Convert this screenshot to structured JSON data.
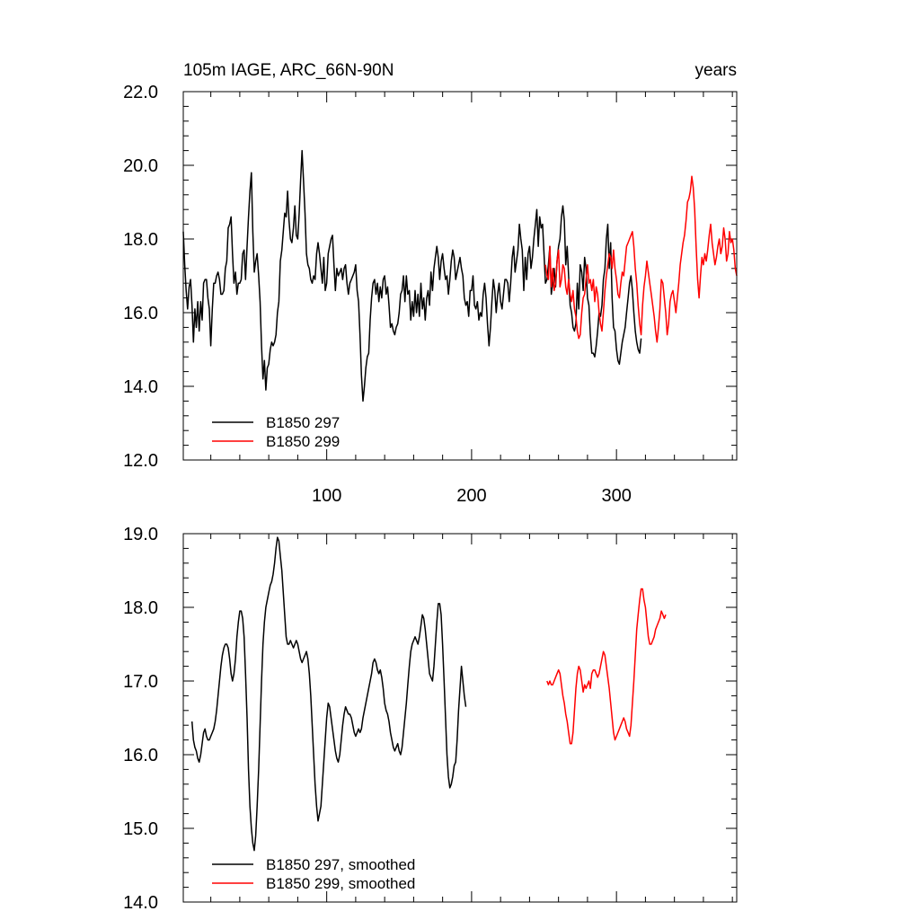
{
  "chart_data": [
    {
      "type": "line",
      "title_left": "105m IAGE, ARC_66N-90N",
      "title_right": "years",
      "xlim": [
        1,
        383
      ],
      "ylim": [
        12.0,
        22.0
      ],
      "yticks": [
        "12.0",
        "14.0",
        "16.0",
        "18.0",
        "20.0",
        "22.0"
      ],
      "xticks": [
        "100",
        "200",
        "300"
      ],
      "grid": false,
      "legend_position": "bottom-left",
      "series": [
        {
          "name": "B1850 297",
          "color": "#000000",
          "x_start": 1,
          "values": [
            18.2,
            17.3,
            16.6,
            16.1,
            16.7,
            16.9,
            16.2,
            15.2,
            16.1,
            15.6,
            16.3,
            15.5,
            16.3,
            15.8,
            16.8,
            16.9,
            16.9,
            16.4,
            16.1,
            15.1,
            16.1,
            16.8,
            16.8,
            17.0,
            17.1,
            16.9,
            16.5,
            16.5,
            16.6,
            17.2,
            17.4,
            18.3,
            18.4,
            18.6,
            17.6,
            16.8,
            17.1,
            16.5,
            16.8,
            16.8,
            16.9,
            17.6,
            17.7,
            16.9,
            17.8,
            18.6,
            19.3,
            19.8,
            18.2,
            17.1,
            17.4,
            17.6,
            17.0,
            16.3,
            15.1,
            14.2,
            14.7,
            13.9,
            14.5,
            14.6,
            15.0,
            15.2,
            15.1,
            15.2,
            15.4,
            16.0,
            16.3,
            17.4,
            17.7,
            18.2,
            18.7,
            18.6,
            19.3,
            18.5,
            18.0,
            17.9,
            18.3,
            18.9,
            18.1,
            18.0,
            18.7,
            19.6,
            20.4,
            19.6,
            18.7,
            17.6,
            17.3,
            17.2,
            16.9,
            16.8,
            17.0,
            16.9,
            17.6,
            17.9,
            17.6,
            17.2,
            16.8,
            17.5,
            16.6,
            16.8,
            17.6,
            17.8,
            18.0,
            18.1,
            17.3,
            16.6,
            17.2,
            17.0,
            17.1,
            17.2,
            16.9,
            17.2,
            17.3,
            16.8,
            16.5,
            16.8,
            16.9,
            17.0,
            17.1,
            17.3,
            16.6,
            16.3,
            15.4,
            14.3,
            13.6,
            14.0,
            14.5,
            14.8,
            14.9,
            15.8,
            16.4,
            16.8,
            16.9,
            16.5,
            16.8,
            16.3,
            16.7,
            16.4,
            16.9,
            17.0,
            16.5,
            16.7,
            16.2,
            15.6,
            15.7,
            15.5,
            15.4,
            15.6,
            15.7,
            16.0,
            16.5,
            16.6,
            17.0,
            16.3,
            17.0,
            16.5,
            16.6,
            15.8,
            16.3,
            15.9,
            16.6,
            16.0,
            16.5,
            15.9,
            16.8,
            16.1,
            16.4,
            15.8,
            16.4,
            16.6,
            16.2,
            17.1,
            16.6,
            17.2,
            17.5,
            17.8,
            17.5,
            16.9,
            17.4,
            17.6,
            17.2,
            16.9,
            17.0,
            16.5,
            16.9,
            17.4,
            17.7,
            17.5,
            16.9,
            17.1,
            17.3,
            17.5,
            17.2,
            17.0,
            16.4,
            16.2,
            16.3,
            15.9,
            16.6,
            16.6,
            17.0,
            16.2,
            16.1,
            16.3,
            15.8,
            16.0,
            15.9,
            16.5,
            16.8,
            16.4,
            15.7,
            15.1,
            15.6,
            16.3,
            16.9,
            16.6,
            16.0,
            16.5,
            16.8,
            16.3,
            16.1,
            16.5,
            16.9,
            16.9,
            16.8,
            16.3,
            16.8,
            17.5,
            17.8,
            17.1,
            17.4,
            17.7,
            18.4,
            18.0,
            17.7,
            16.6,
            17.5,
            16.9,
            17.6,
            17.8,
            17.2,
            17.5,
            18.0,
            18.4,
            18.8,
            17.8,
            18.6,
            18.3,
            18.4,
            17.6,
            16.8,
            16.9,
            17.3,
            17.8,
            16.5,
            16.8,
            17.2,
            16.7,
            17.4,
            17.8,
            18.0,
            18.6,
            18.9,
            18.5,
            17.3,
            17.8,
            17.0,
            16.2,
            16.0,
            15.6,
            15.5,
            15.7,
            16.8,
            16.1,
            17.3,
            17.1,
            16.6,
            17.5,
            17.2,
            16.4,
            16.2,
            15.4,
            14.9,
            14.9,
            14.8,
            15.1,
            15.5,
            16.0,
            15.9,
            16.2,
            16.9,
            17.2,
            18.0,
            18.4,
            17.2,
            17.9,
            16.4,
            15.6,
            15.5,
            15.0,
            14.7,
            14.6,
            14.9,
            15.2,
            15.4,
            15.6,
            16.0,
            16.4,
            16.8,
            17.0,
            16.6,
            16.0,
            15.5,
            15.2,
            15.0,
            14.9,
            15.3
          ]
        },
        {
          "name": "B1850 299",
          "color": "#ff0000",
          "x_start": 251,
          "values": [
            17.3,
            17.0,
            16.9,
            17.8,
            16.7,
            17.2,
            16.6,
            16.8,
            17.4,
            17.7,
            16.7,
            16.9,
            17.3,
            17.2,
            16.7,
            16.5,
            16.9,
            16.5,
            16.3,
            16.6,
            16.1,
            15.9,
            15.5,
            15.3,
            15.4,
            16.0,
            16.4,
            16.5,
            16.9,
            17.3,
            16.8,
            16.9,
            16.6,
            16.9,
            16.3,
            16.7,
            16.5,
            16.0,
            15.7,
            15.5,
            16.0,
            16.6,
            17.0,
            17.3,
            17.6,
            17.5,
            17.2,
            17.7,
            17.2,
            16.9,
            16.5,
            16.4,
            16.8,
            17.1,
            17.0,
            17.4,
            17.8,
            17.9,
            18.0,
            18.1,
            18.2,
            17.8,
            17.2,
            16.8,
            16.2,
            15.7,
            15.4,
            16.2,
            16.7,
            17.0,
            17.4,
            17.1,
            16.8,
            16.5,
            16.2,
            15.9,
            15.5,
            15.2,
            15.6,
            16.1,
            16.9,
            16.8,
            16.4,
            16.0,
            15.4,
            15.7,
            16.3,
            16.5,
            16.6,
            16.3,
            16.0,
            16.4,
            16.8,
            17.3,
            17.6,
            17.9,
            18.1,
            18.5,
            19.0,
            19.1,
            19.3,
            19.7,
            19.4,
            18.8,
            17.8,
            16.9,
            16.4,
            17.0,
            17.5,
            17.3,
            17.6,
            17.4,
            17.7,
            18.1,
            18.4,
            17.9,
            17.6,
            17.3,
            17.5,
            17.8,
            18.0,
            17.6,
            17.8,
            18.3,
            18.0,
            17.4,
            17.6,
            18.2,
            17.9,
            18.0,
            17.7,
            17.2,
            17.0
          ]
        }
      ]
    },
    {
      "type": "line",
      "xlim": [
        1,
        383
      ],
      "ylim": [
        14.0,
        19.0
      ],
      "yticks": [
        "14.0",
        "15.0",
        "16.0",
        "17.0",
        "18.0",
        "19.0"
      ],
      "grid": false,
      "legend_position": "bottom-left",
      "series": [
        {
          "name": "B1850 297, smoothed",
          "color": "#000000",
          "x_start": 7,
          "values": [
            16.45,
            16.2,
            16.1,
            16.05,
            15.95,
            15.9,
            16.0,
            16.15,
            16.3,
            16.35,
            16.25,
            16.2,
            16.2,
            16.25,
            16.3,
            16.35,
            16.45,
            16.6,
            16.8,
            17.0,
            17.2,
            17.35,
            17.45,
            17.5,
            17.5,
            17.45,
            17.3,
            17.1,
            17.0,
            17.1,
            17.3,
            17.6,
            17.8,
            17.95,
            17.95,
            17.85,
            17.6,
            17.1,
            16.5,
            15.8,
            15.3,
            15.0,
            14.8,
            14.7,
            14.9,
            15.3,
            15.8,
            16.4,
            17.0,
            17.5,
            17.8,
            18.0,
            18.1,
            18.2,
            18.3,
            18.35,
            18.45,
            18.6,
            18.8,
            18.95,
            18.9,
            18.7,
            18.5,
            18.2,
            17.9,
            17.6,
            17.5,
            17.5,
            17.55,
            17.5,
            17.45,
            17.5,
            17.55,
            17.5,
            17.4,
            17.3,
            17.25,
            17.3,
            17.35,
            17.4,
            17.3,
            17.1,
            16.8,
            16.4,
            16.0,
            15.6,
            15.3,
            15.1,
            15.2,
            15.3,
            15.6,
            15.9,
            16.2,
            16.5,
            16.7,
            16.65,
            16.5,
            16.35,
            16.2,
            16.05,
            15.95,
            15.9,
            16.0,
            16.2,
            16.4,
            16.55,
            16.65,
            16.6,
            16.55,
            16.55,
            16.5,
            16.4,
            16.3,
            16.25,
            16.3,
            16.35,
            16.3,
            16.35,
            16.5,
            16.6,
            16.7,
            16.8,
            16.9,
            17.0,
            17.1,
            17.25,
            17.3,
            17.25,
            17.15,
            17.1,
            17.15,
            17.05,
            16.9,
            16.7,
            16.6,
            16.55,
            16.45,
            16.3,
            16.2,
            16.1,
            16.05,
            16.1,
            16.15,
            16.05,
            16.0,
            16.1,
            16.3,
            16.5,
            16.7,
            16.95,
            17.2,
            17.4,
            17.5,
            17.55,
            17.6,
            17.55,
            17.5,
            17.6,
            17.75,
            17.9,
            17.85,
            17.7,
            17.5,
            17.3,
            17.1,
            17.05,
            17.0,
            17.2,
            17.5,
            17.8,
            18.05,
            18.05,
            17.9,
            17.5,
            17.0,
            16.5,
            16.0,
            15.7,
            15.55,
            15.6,
            15.7,
            15.85,
            15.9,
            16.2,
            16.6,
            16.9,
            17.2,
            17.0,
            16.8,
            16.65
          ]
        },
        {
          "name": "B1850 299, smoothed",
          "color": "#ff0000",
          "x_start": 252,
          "values": [
            17.0,
            16.95,
            17.0,
            16.95,
            16.95,
            17.0,
            17.05,
            17.1,
            17.15,
            17.1,
            16.95,
            16.8,
            16.7,
            16.55,
            16.45,
            16.3,
            16.15,
            16.15,
            16.3,
            16.6,
            16.9,
            17.1,
            17.2,
            17.15,
            17.0,
            16.85,
            16.95,
            16.9,
            16.95,
            17.0,
            16.9,
            17.1,
            17.15,
            17.15,
            17.1,
            17.05,
            17.1,
            17.2,
            17.3,
            17.4,
            17.35,
            17.2,
            17.05,
            16.9,
            16.7,
            16.5,
            16.3,
            16.2,
            16.25,
            16.3,
            16.35,
            16.4,
            16.45,
            16.5,
            16.45,
            16.35,
            16.3,
            16.25,
            16.4,
            16.7,
            17.0,
            17.35,
            17.7,
            17.9,
            18.1,
            18.25,
            18.25,
            18.1,
            18.0,
            17.8,
            17.6,
            17.5,
            17.5,
            17.55,
            17.6,
            17.7,
            17.75,
            17.8,
            17.85,
            17.95,
            17.9,
            17.85,
            17.9
          ]
        }
      ]
    }
  ]
}
